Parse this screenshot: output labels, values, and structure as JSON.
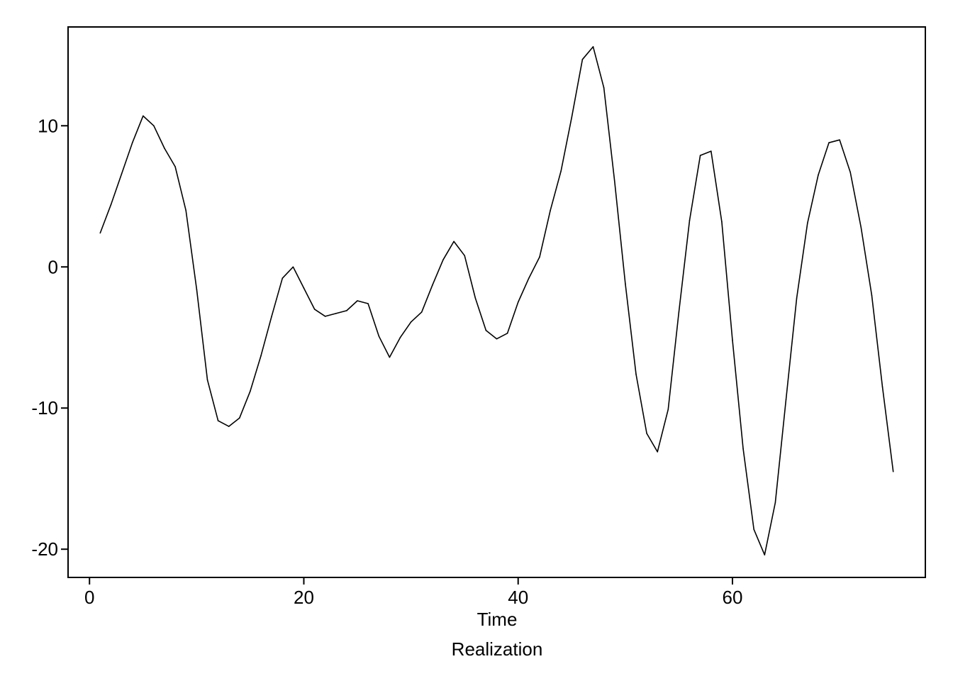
{
  "chart_data": {
    "type": "line",
    "title": "",
    "xlabel": "Time",
    "caption": "Realization",
    "ylabel": "",
    "xlim": [
      -2,
      78
    ],
    "ylim": [
      -22,
      17
    ],
    "xticks": [
      0,
      20,
      40,
      60
    ],
    "yticks": [
      -20,
      -10,
      0,
      10
    ],
    "grid": false,
    "legend": "none",
    "line_color": "#000000",
    "series": [
      {
        "x": [
          1,
          2,
          3,
          4,
          5,
          6,
          7,
          8,
          9,
          10,
          11,
          12,
          13,
          14,
          15,
          16,
          17,
          18,
          19,
          20,
          21,
          22,
          23,
          24,
          25,
          26,
          27,
          28,
          29,
          30,
          31,
          32,
          33,
          34,
          35,
          36,
          37,
          38,
          39,
          40,
          41,
          42,
          43,
          44,
          45,
          46,
          47,
          48,
          49,
          50,
          51,
          52,
          53,
          54,
          55,
          56,
          57,
          58,
          59,
          60,
          61,
          62,
          63,
          64,
          65,
          66,
          67,
          68,
          69,
          70,
          71,
          72,
          73,
          74,
          75
        ],
        "values": [
          2.4,
          4.4,
          6.6,
          8.8,
          10.7,
          10.0,
          8.4,
          7.1,
          4.0,
          -1.6,
          -8.0,
          -10.9,
          -11.3,
          -10.7,
          -8.8,
          -6.3,
          -3.5,
          -0.8,
          0.0,
          -1.5,
          -3.0,
          -3.5,
          -3.3,
          -3.1,
          -2.4,
          -2.6,
          -4.9,
          -6.4,
          -5.0,
          -3.9,
          -3.2,
          -1.3,
          0.5,
          1.8,
          0.8,
          -2.2,
          -4.5,
          -5.1,
          -4.7,
          -2.5,
          -0.8,
          0.7,
          4.0,
          6.8,
          10.6,
          14.7,
          15.6,
          12.7,
          6.1,
          -1.2,
          -7.6,
          -11.8,
          -13.1,
          -10.1,
          -3.2,
          3.3,
          7.9,
          8.2,
          3.2,
          -5.2,
          -12.9,
          -18.6,
          -20.4,
          -16.7,
          -9.4,
          -2.2,
          3.1,
          6.5,
          8.8,
          9.0,
          6.7,
          2.8,
          -2.0,
          -8.5,
          -14.5
        ]
      }
    ]
  }
}
